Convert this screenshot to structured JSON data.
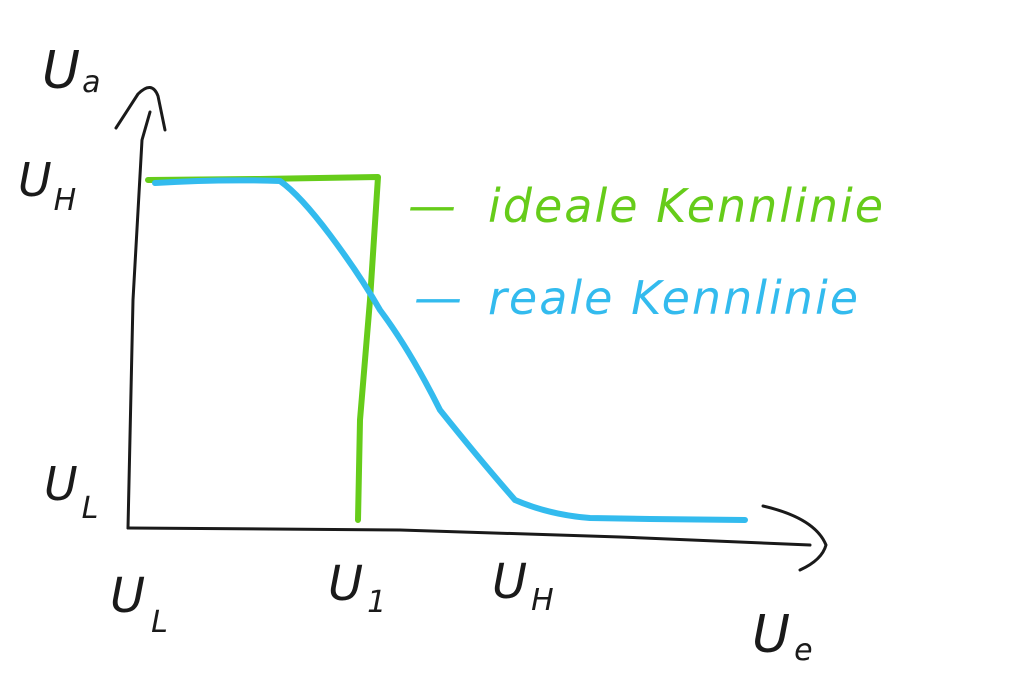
{
  "axes": {
    "y_label": {
      "main": "U",
      "sub": "a"
    },
    "x_label": {
      "main": "U",
      "sub": "e"
    },
    "y_ticks": [
      {
        "main": "U",
        "sub": "H"
      },
      {
        "main": "U",
        "sub": "L"
      }
    ],
    "x_ticks": [
      {
        "main": "U",
        "sub": "L"
      },
      {
        "main": "U",
        "sub": "1"
      },
      {
        "main": "U",
        "sub": "H"
      }
    ]
  },
  "legend": [
    {
      "dash": "—",
      "label": "ideale Kennlinie",
      "color": "#66cc1a"
    },
    {
      "dash": "—",
      "label": "reale Kennlinie",
      "color": "#33bbee"
    }
  ],
  "colors": {
    "axis": "#1a1a1a",
    "ideal": "#66cc1a",
    "real": "#33bbee"
  }
}
